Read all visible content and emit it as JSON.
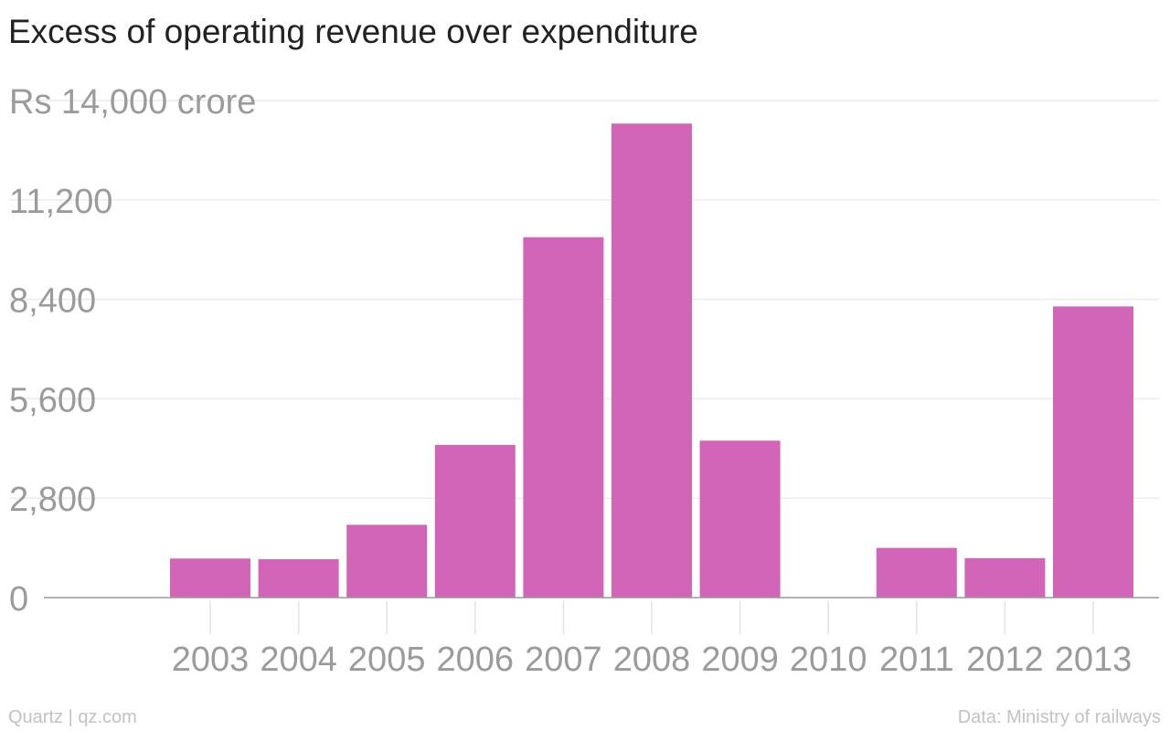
{
  "title": "Excess of operating revenue over expenditure",
  "footer": {
    "source_left": "Quartz | qz.com",
    "source_right": "Data: Ministry of railways"
  },
  "chart_data": {
    "type": "bar",
    "title": "Excess of operating revenue over expenditure",
    "categories": [
      "2003",
      "2004",
      "2005",
      "2006",
      "2007",
      "2008",
      "2009",
      "2010",
      "2011",
      "2012",
      "2013"
    ],
    "values": [
      1100,
      1080,
      2050,
      4300,
      10150,
      13350,
      4420,
      0,
      1400,
      1110,
      8200
    ],
    "ylim": [
      0,
      14000
    ],
    "y_ticks": [
      0,
      2800,
      5600,
      8400,
      11200,
      14000
    ],
    "y_tick_labels": [
      "0",
      "2,800",
      "5,600",
      "8,400",
      "11,200",
      "Rs 14,000 crore"
    ],
    "grid": true,
    "bar_color": "#d365b9"
  }
}
